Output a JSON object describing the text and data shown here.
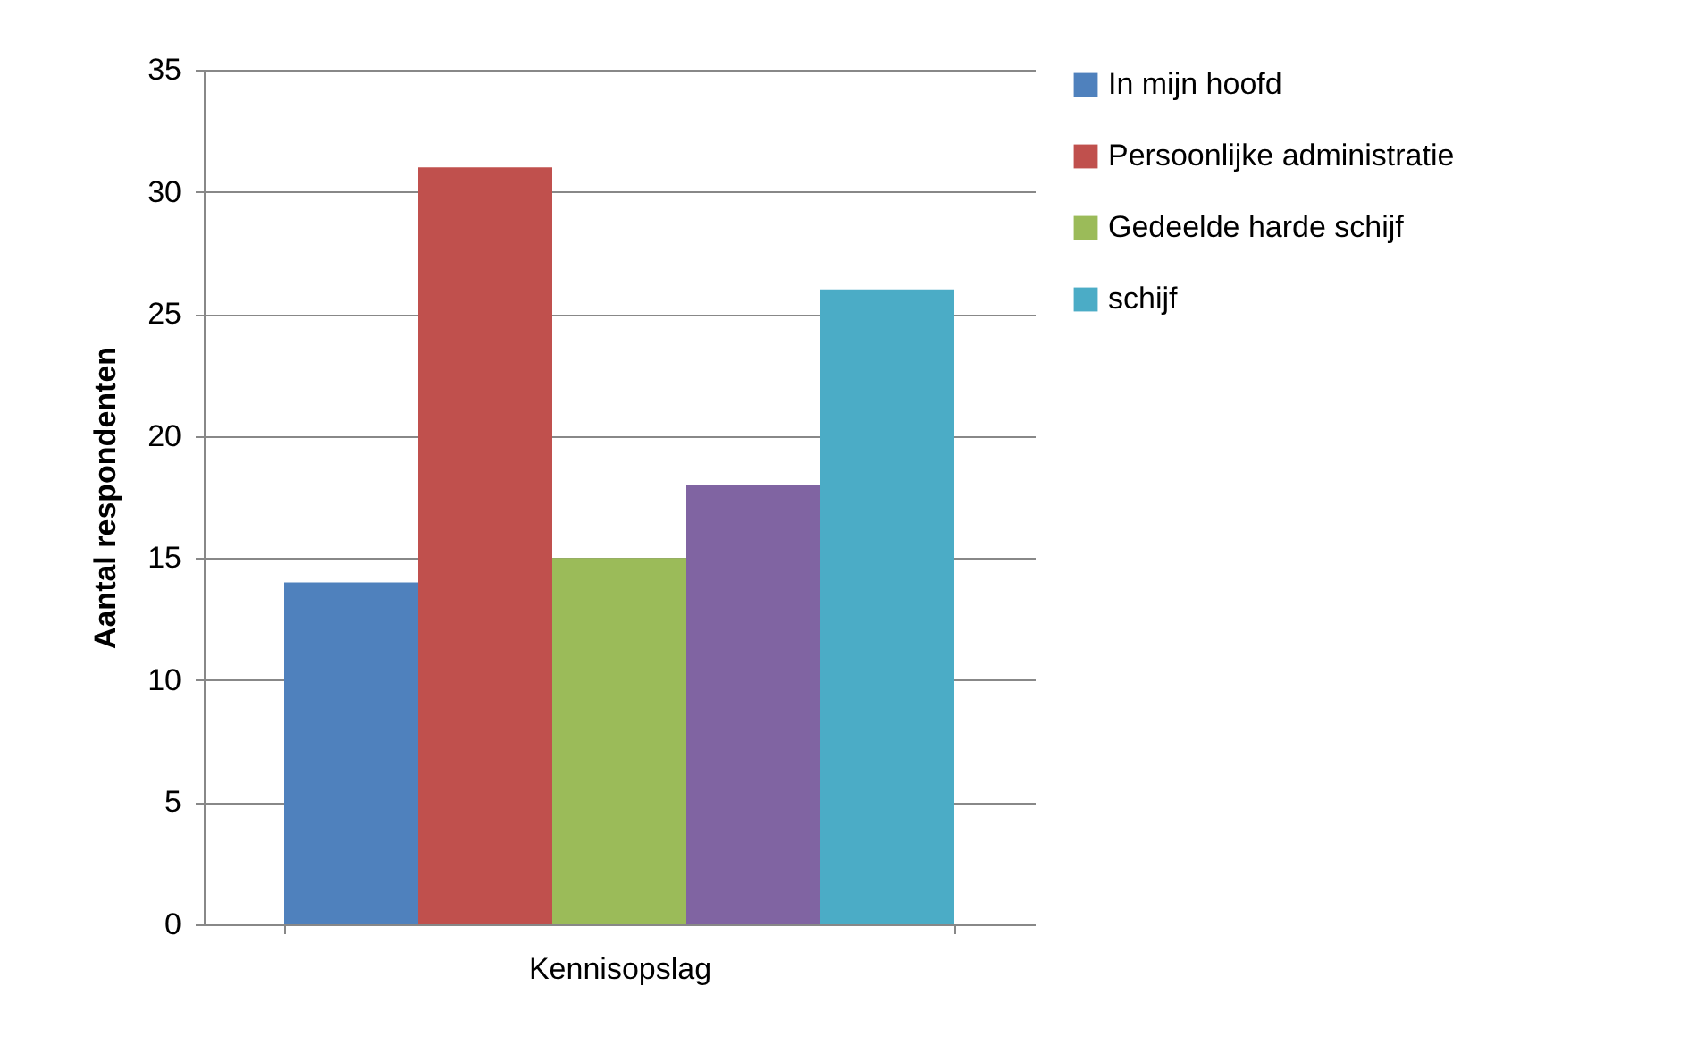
{
  "chart_data": {
    "type": "bar",
    "ylabel": "Aantal respondenten",
    "categories": [
      "Kennisopslag"
    ],
    "series": [
      {
        "name": "In mijn hoofd",
        "color": "#4f81bd",
        "values": [
          14
        ]
      },
      {
        "name": "Persoonlijke administratie",
        "color": "#c0504d",
        "values": [
          31
        ]
      },
      {
        "name": "Gedeelde harde schijf",
        "color": "#9bbb59",
        "values": [
          15
        ]
      },
      {
        "color": "#8064a2",
        "values": [
          18
        ]
      },
      {
        "name": "schijf",
        "color": "#4bacc6",
        "values": [
          26
        ]
      }
    ],
    "ylim": [
      0,
      35
    ],
    "yticks": [
      0,
      5,
      10,
      15,
      20,
      25,
      30,
      35
    ],
    "grid": "y",
    "legend": "right"
  }
}
